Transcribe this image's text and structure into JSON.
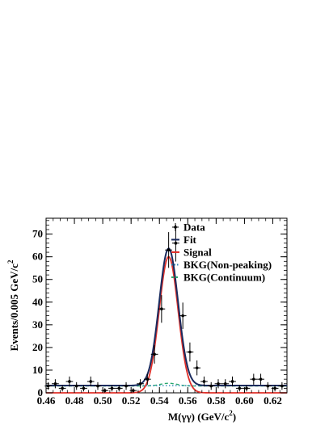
{
  "chart_data": {
    "type": "line",
    "xlabel_main": "M(γγ) (GeV/c",
    "xlabel_sup": "2",
    "xlabel_tail": ")",
    "ylabel_main": "Events/0.005 GeV/c",
    "ylabel_sup": "2",
    "xlim": [
      0.46,
      0.63
    ],
    "ylim": [
      0,
      77
    ],
    "xticks": [
      "0.46",
      "0.48",
      "0.50",
      "0.52",
      "0.54",
      "0.56",
      "0.58",
      "0.60",
      "0.62"
    ],
    "yticks": [
      "0",
      "10",
      "20",
      "30",
      "40",
      "50",
      "60",
      "70"
    ],
    "legend": {
      "placement": "top-right",
      "entries": [
        {
          "label": "Data",
          "color": "#000000",
          "style": "marker"
        },
        {
          "label": "Fit",
          "color": "#1a2a5e",
          "style": "solid"
        },
        {
          "label": "Signal",
          "color": "#e0302a",
          "style": "solid"
        },
        {
          "label": "BKG(Non-peaking)",
          "color": "#2f86b8",
          "style": "dotted"
        },
        {
          "label": "BKG(Continuum)",
          "color": "#2aa870",
          "style": "dashed"
        }
      ]
    },
    "data_points": [
      {
        "x": 0.4615,
        "y": 3,
        "err": 1.7
      },
      {
        "x": 0.4665,
        "y": 4,
        "err": 2.0
      },
      {
        "x": 0.4715,
        "y": 2,
        "err": 1.4
      },
      {
        "x": 0.4765,
        "y": 5,
        "err": 2.2
      },
      {
        "x": 0.4815,
        "y": 3,
        "err": 1.7
      },
      {
        "x": 0.4865,
        "y": 2,
        "err": 1.4
      },
      {
        "x": 0.4915,
        "y": 5,
        "err": 2.2
      },
      {
        "x": 0.4965,
        "y": 3,
        "err": 1.7
      },
      {
        "x": 0.5015,
        "y": 1,
        "err": 1.0
      },
      {
        "x": 0.5065,
        "y": 2,
        "err": 1.4
      },
      {
        "x": 0.5115,
        "y": 2,
        "err": 1.4
      },
      {
        "x": 0.5165,
        "y": 3,
        "err": 1.7
      },
      {
        "x": 0.5215,
        "y": 1,
        "err": 1.0
      },
      {
        "x": 0.5265,
        "y": 4,
        "err": 2.0
      },
      {
        "x": 0.5315,
        "y": 6,
        "err": 2.4
      },
      {
        "x": 0.5365,
        "y": 17,
        "err": 4.1
      },
      {
        "x": 0.5415,
        "y": 37,
        "err": 6.1
      },
      {
        "x": 0.5465,
        "y": 63,
        "err": 7.9
      },
      {
        "x": 0.5515,
        "y": 66,
        "err": 8.1
      },
      {
        "x": 0.5565,
        "y": 34,
        "err": 5.8
      },
      {
        "x": 0.5615,
        "y": 18,
        "err": 4.2
      },
      {
        "x": 0.5665,
        "y": 11,
        "err": 3.3
      },
      {
        "x": 0.5715,
        "y": 5,
        "err": 2.2
      },
      {
        "x": 0.5765,
        "y": 3,
        "err": 1.7
      },
      {
        "x": 0.5815,
        "y": 4,
        "err": 2.0
      },
      {
        "x": 0.5865,
        "y": 4,
        "err": 2.0
      },
      {
        "x": 0.5915,
        "y": 5,
        "err": 2.2
      },
      {
        "x": 0.5965,
        "y": 2,
        "err": 1.4
      },
      {
        "x": 0.6015,
        "y": 2,
        "err": 1.4
      },
      {
        "x": 0.6065,
        "y": 6,
        "err": 2.4
      },
      {
        "x": 0.6115,
        "y": 6,
        "err": 2.4
      },
      {
        "x": 0.6165,
        "y": 3,
        "err": 1.7
      },
      {
        "x": 0.6215,
        "y": 2,
        "err": 1.4
      },
      {
        "x": 0.6265,
        "y": 3,
        "err": 1.7
      }
    ],
    "fit_model": {
      "signal_mean": 0.5465,
      "signal_sigma": 0.0067,
      "signal_peak": 60,
      "nonpeaking_level": 3.2,
      "continuum_level": 3.0,
      "continuum_bump": 1.2,
      "continuum_bump_sigma": 0.006
    }
  }
}
